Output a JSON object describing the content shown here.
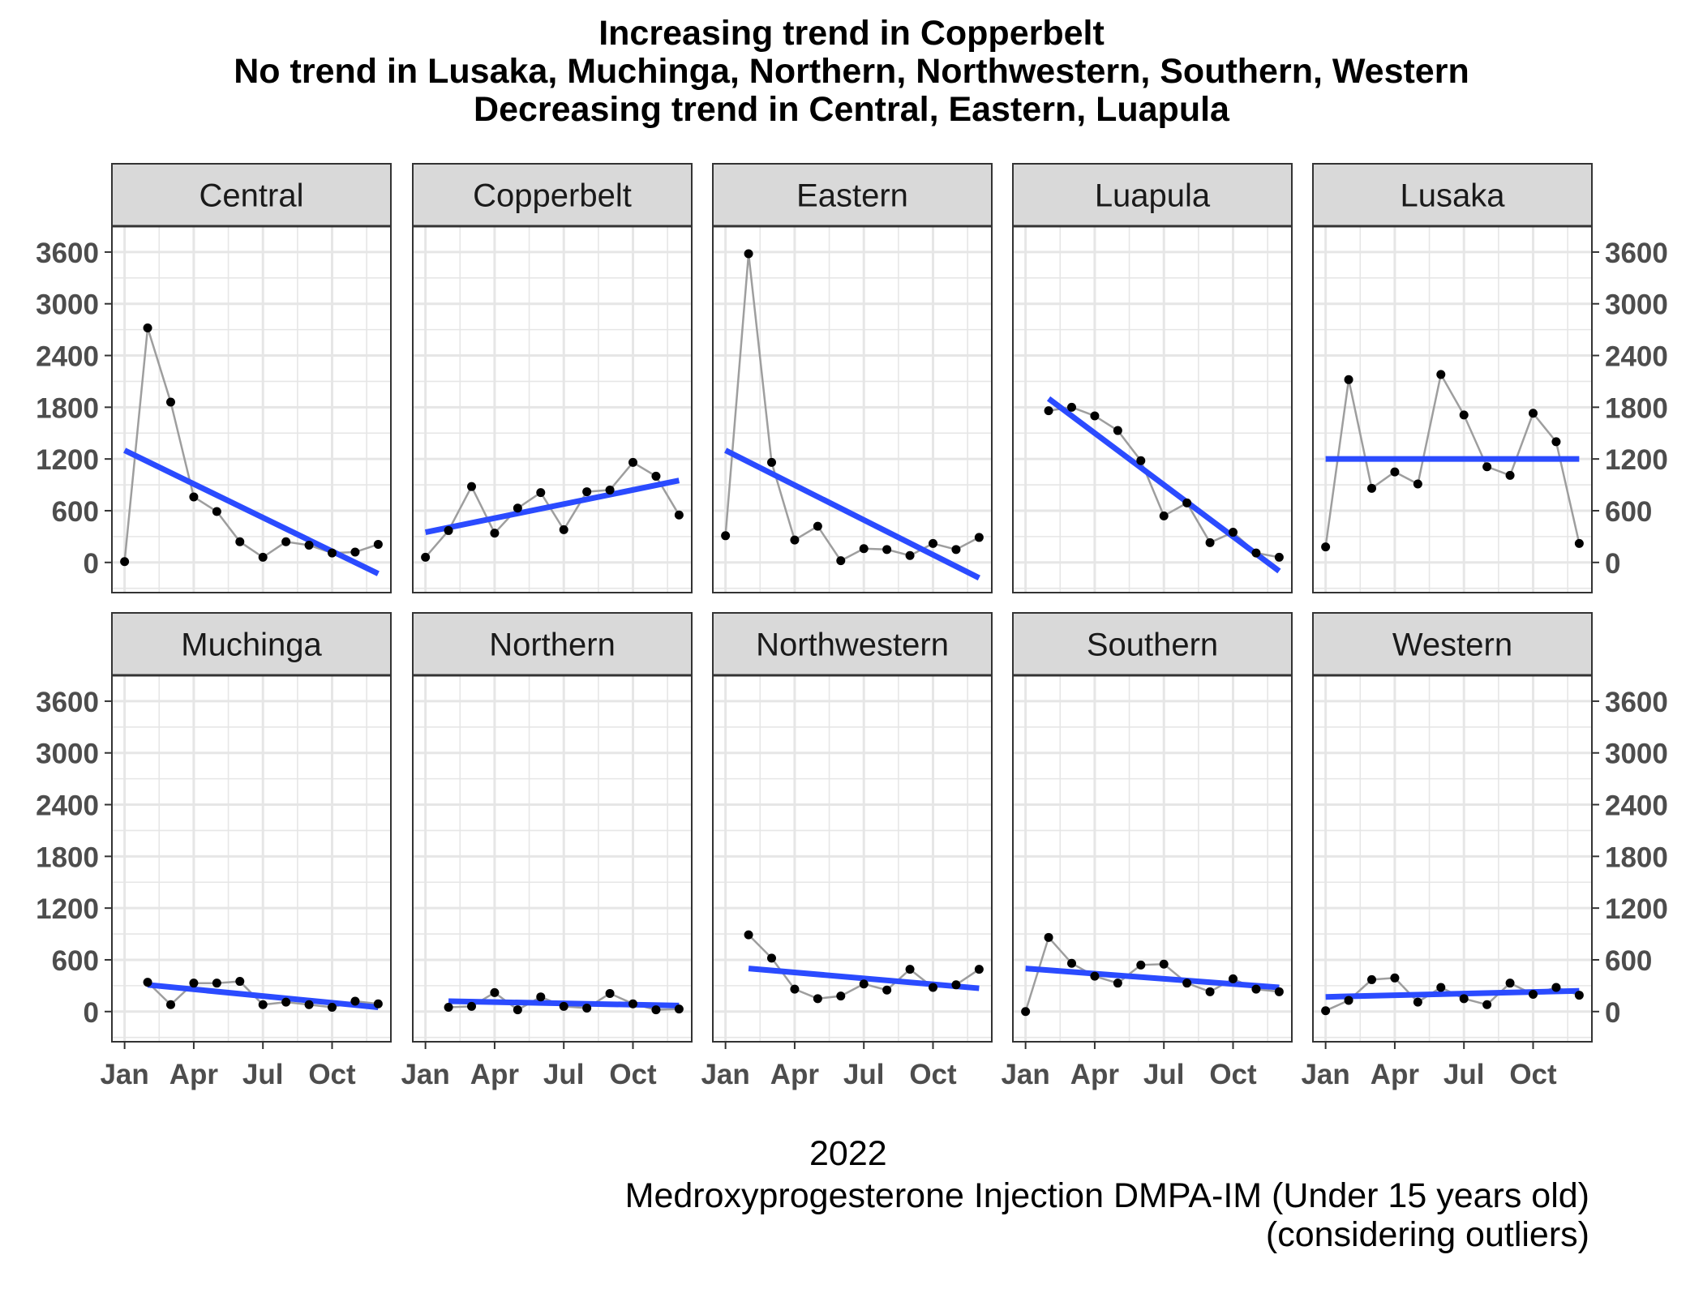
{
  "title_lines": [
    "Increasing trend in Copperbelt",
    "No trend in Lusaka, Muchinga, Northern, Northwestern, Southern, Western",
    "Decreasing trend in Central, Eastern, Luapula"
  ],
  "xlabel": "2022",
  "caption_lines": [
    "Medroxyprogesterone Injection DMPA-IM (Under 15 years old)",
    "(considering outliers)"
  ],
  "colors": {
    "panel_strip": "#d9d9d9",
    "grid": "#e6e6e6",
    "series_line": "#9e9e9e",
    "trend_line": "#2b4bff",
    "point": "#000000"
  },
  "chart_data": {
    "type": "line",
    "facet_layout": "2 rows x 5 columns",
    "ylim": [
      -350,
      3900
    ],
    "y_ticks": [
      0,
      600,
      1200,
      1800,
      2400,
      3000,
      3600
    ],
    "x_ticks": [
      "Jan",
      "Apr",
      "Jul",
      "Oct"
    ],
    "x": [
      "2022-01",
      "2022-02",
      "2022-03",
      "2022-04",
      "2022-05",
      "2022-06",
      "2022-07",
      "2022-08",
      "2022-09",
      "2022-10",
      "2022-11",
      "2022-12"
    ],
    "y_axis_side": "left on first column, right on last column",
    "grid": true,
    "panels": [
      {
        "name": "Central",
        "values": [
          10,
          2720,
          1860,
          760,
          590,
          240,
          60,
          240,
          200,
          110,
          120,
          210
        ],
        "trend": [
          1300,
          -130
        ]
      },
      {
        "name": "Copperbelt",
        "values": [
          60,
          370,
          880,
          340,
          630,
          810,
          380,
          820,
          840,
          1160,
          1000,
          550
        ],
        "trend": [
          350,
          950
        ]
      },
      {
        "name": "Eastern",
        "values": [
          310,
          3580,
          1160,
          260,
          420,
          20,
          160,
          150,
          80,
          220,
          150,
          290
        ],
        "trend": [
          1300,
          -180
        ]
      },
      {
        "name": "Luapula",
        "values": [
          null,
          1760,
          1800,
          1700,
          1530,
          1180,
          540,
          690,
          230,
          350,
          110,
          60
        ],
        "trend": [
          1900,
          -100
        ]
      },
      {
        "name": "Lusaka",
        "values": [
          180,
          2120,
          860,
          1050,
          910,
          2180,
          1710,
          1110,
          1010,
          1730,
          1400,
          220
        ],
        "trend": [
          1200,
          1200
        ]
      },
      {
        "name": "Muchinga",
        "values": [
          null,
          340,
          80,
          330,
          330,
          350,
          80,
          110,
          80,
          50,
          120,
          90
        ],
        "trend": [
          310,
          50
        ]
      },
      {
        "name": "Northern",
        "values": [
          null,
          50,
          60,
          220,
          20,
          170,
          60,
          40,
          210,
          90,
          20,
          30
        ],
        "trend": [
          120,
          70
        ]
      },
      {
        "name": "Northwestern",
        "values": [
          null,
          890,
          620,
          260,
          150,
          180,
          320,
          250,
          490,
          280,
          310,
          490
        ],
        "trend": [
          500,
          270
        ]
      },
      {
        "name": "Southern",
        "values": [
          0,
          860,
          560,
          410,
          330,
          540,
          550,
          330,
          230,
          380,
          260,
          230
        ],
        "trend": [
          500,
          280
        ]
      },
      {
        "name": "Western",
        "values": [
          10,
          130,
          370,
          390,
          110,
          280,
          150,
          80,
          330,
          200,
          280,
          190
        ],
        "trend": [
          170,
          240
        ]
      }
    ]
  }
}
